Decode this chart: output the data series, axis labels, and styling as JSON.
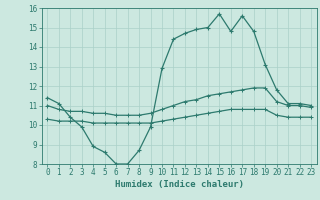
{
  "xlabel": "Humidex (Indice chaleur)",
  "x": [
    0,
    1,
    2,
    3,
    4,
    5,
    6,
    7,
    8,
    9,
    10,
    11,
    12,
    13,
    14,
    15,
    16,
    17,
    18,
    19,
    20,
    21,
    22,
    23
  ],
  "line1": [
    11.4,
    11.1,
    10.4,
    9.9,
    8.9,
    8.6,
    8.0,
    8.0,
    8.7,
    9.9,
    12.9,
    14.4,
    14.7,
    14.9,
    15.0,
    15.7,
    14.8,
    15.6,
    14.8,
    13.1,
    11.8,
    11.1,
    11.1,
    11.0
  ],
  "line2": [
    11.0,
    10.8,
    10.7,
    10.7,
    10.6,
    10.6,
    10.5,
    10.5,
    10.5,
    10.6,
    10.8,
    11.0,
    11.2,
    11.3,
    11.5,
    11.6,
    11.7,
    11.8,
    11.9,
    11.9,
    11.2,
    11.0,
    11.0,
    10.9
  ],
  "line3": [
    10.3,
    10.2,
    10.2,
    10.2,
    10.1,
    10.1,
    10.1,
    10.1,
    10.1,
    10.1,
    10.2,
    10.3,
    10.4,
    10.5,
    10.6,
    10.7,
    10.8,
    10.8,
    10.8,
    10.8,
    10.5,
    10.4,
    10.4,
    10.4
  ],
  "line_color": "#2d7a6e",
  "bg_color": "#cce8e0",
  "grid_color": "#aad0c8",
  "ylim": [
    8,
    16
  ],
  "xlim": [
    -0.5,
    23.5
  ],
  "yticks": [
    8,
    9,
    10,
    11,
    12,
    13,
    14,
    15,
    16
  ],
  "xticks": [
    0,
    1,
    2,
    3,
    4,
    5,
    6,
    7,
    8,
    9,
    10,
    11,
    12,
    13,
    14,
    15,
    16,
    17,
    18,
    19,
    20,
    21,
    22,
    23
  ],
  "tick_fontsize": 5.5,
  "xlabel_fontsize": 6.5
}
